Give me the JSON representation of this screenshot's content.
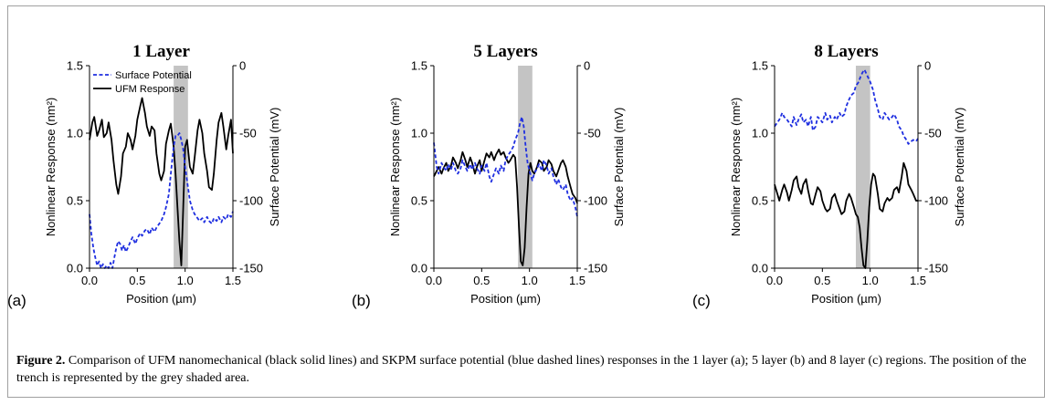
{
  "chart_data": [
    {
      "type": "line",
      "title": "1 Layer",
      "panel_label": "(a)",
      "xlabel": "Position (µm)",
      "ylabel_left": "Nonlinear Response (nm²)",
      "ylabel_right": "Surface Potential (mV)",
      "xlim": [
        0,
        1.5
      ],
      "ylim_left": [
        0,
        1.5
      ],
      "ylim_right": [
        -150,
        0
      ],
      "x_ticks": [
        "0.0",
        "0.5",
        "1.0",
        "1.5"
      ],
      "y_left_ticks": [
        "0.0",
        "0.5",
        "1.0",
        "1.5"
      ],
      "y_right_ticks": [
        "0",
        "-50",
        "-100",
        "-150"
      ],
      "shaded_region": [
        0.88,
        1.03
      ],
      "legend": [
        "Surface Potential",
        "UFM Response"
      ],
      "series": [
        {
          "name": "UFM Response",
          "axis": "left",
          "color": "#000000",
          "dash": "solid",
          "x": [
            0.0,
            0.03,
            0.05,
            0.08,
            0.1,
            0.13,
            0.15,
            0.18,
            0.2,
            0.23,
            0.25,
            0.28,
            0.3,
            0.33,
            0.35,
            0.38,
            0.4,
            0.43,
            0.45,
            0.48,
            0.5,
            0.53,
            0.55,
            0.58,
            0.6,
            0.63,
            0.65,
            0.68,
            0.7,
            0.73,
            0.75,
            0.78,
            0.8,
            0.83,
            0.85,
            0.88,
            0.9,
            0.92,
            0.94,
            0.96,
            0.98,
            1.0,
            1.02,
            1.05,
            1.08,
            1.1,
            1.13,
            1.15,
            1.18,
            1.2,
            1.23,
            1.25,
            1.28,
            1.3,
            1.33,
            1.35,
            1.38,
            1.4,
            1.43,
            1.45,
            1.48,
            1.5
          ],
          "y": [
            0.95,
            1.08,
            1.12,
            0.98,
            1.02,
            1.1,
            0.97,
            1.0,
            1.08,
            0.95,
            0.8,
            0.62,
            0.55,
            0.68,
            0.85,
            0.9,
            1.0,
            0.95,
            0.88,
            0.98,
            1.1,
            1.2,
            1.26,
            1.15,
            1.05,
            0.98,
            1.05,
            1.02,
            0.85,
            0.7,
            0.65,
            0.72,
            0.92,
            1.02,
            1.07,
            0.9,
            0.7,
            0.45,
            0.2,
            0.02,
            0.45,
            0.9,
            0.95,
            0.75,
            0.7,
            0.82,
            1.02,
            1.1,
            1.0,
            0.85,
            0.72,
            0.6,
            0.58,
            0.7,
            0.95,
            1.08,
            1.15,
            1.05,
            0.88,
            0.98,
            1.1,
            0.85
          ]
        },
        {
          "name": "Surface Potential",
          "axis": "right",
          "color": "#1f2fe0",
          "dash": "dashed",
          "x": [
            0.0,
            0.02,
            0.04,
            0.06,
            0.08,
            0.1,
            0.12,
            0.14,
            0.16,
            0.18,
            0.2,
            0.22,
            0.24,
            0.26,
            0.28,
            0.3,
            0.32,
            0.34,
            0.36,
            0.38,
            0.4,
            0.43,
            0.45,
            0.48,
            0.5,
            0.53,
            0.55,
            0.58,
            0.6,
            0.63,
            0.65,
            0.68,
            0.7,
            0.73,
            0.75,
            0.78,
            0.8,
            0.83,
            0.85,
            0.88,
            0.9,
            0.92,
            0.94,
            0.96,
            0.98,
            1.0,
            1.03,
            1.05,
            1.08,
            1.1,
            1.13,
            1.15,
            1.18,
            1.2,
            1.23,
            1.25,
            1.28,
            1.3,
            1.33,
            1.35,
            1.38,
            1.4,
            1.43,
            1.45,
            1.48,
            1.5
          ],
          "y": [
            -110,
            -125,
            -135,
            -142,
            -148,
            -145,
            -150,
            -147,
            -150,
            -148,
            -152,
            -146,
            -150,
            -142,
            -135,
            -130,
            -132,
            -137,
            -133,
            -138,
            -135,
            -130,
            -127,
            -132,
            -128,
            -124,
            -126,
            -122,
            -121,
            -125,
            -120,
            -123,
            -120,
            -117,
            -115,
            -110,
            -105,
            -95,
            -80,
            -60,
            -52,
            -52,
            -50,
            -55,
            -62,
            -75,
            -90,
            -100,
            -107,
            -110,
            -113,
            -115,
            -113,
            -116,
            -112,
            -115,
            -117,
            -113,
            -115,
            -112,
            -116,
            -112,
            -114,
            -110,
            -112,
            -108
          ]
        }
      ]
    },
    {
      "type": "line",
      "title": "5 Layers",
      "panel_label": "(b)",
      "xlabel": "Position (µm)",
      "ylabel_left": "Nonlinear Response (nm²)",
      "ylabel_right": "Surface Potential (mV)",
      "xlim": [
        0,
        1.5
      ],
      "ylim_left": [
        0,
        1.5
      ],
      "ylim_right": [
        -150,
        0
      ],
      "x_ticks": [
        "0.0",
        "0.5",
        "1.0",
        "1.5"
      ],
      "y_left_ticks": [
        "0.0",
        "0.5",
        "1.0",
        "1.5"
      ],
      "y_right_ticks": [
        "0",
        "-50",
        "-100",
        "-150"
      ],
      "shaded_region": [
        0.88,
        1.03
      ],
      "series": [
        {
          "name": "UFM Response",
          "axis": "left",
          "color": "#000000",
          "dash": "solid",
          "x": [
            0.0,
            0.03,
            0.05,
            0.08,
            0.1,
            0.13,
            0.15,
            0.18,
            0.2,
            0.23,
            0.25,
            0.28,
            0.3,
            0.33,
            0.35,
            0.38,
            0.4,
            0.43,
            0.45,
            0.48,
            0.5,
            0.53,
            0.55,
            0.58,
            0.6,
            0.63,
            0.65,
            0.68,
            0.7,
            0.73,
            0.75,
            0.78,
            0.8,
            0.83,
            0.85,
            0.87,
            0.89,
            0.91,
            0.93,
            0.95,
            0.97,
            0.99,
            1.01,
            1.03,
            1.05,
            1.08,
            1.1,
            1.13,
            1.15,
            1.18,
            1.2,
            1.23,
            1.25,
            1.28,
            1.3,
            1.33,
            1.35,
            1.38,
            1.4,
            1.43,
            1.45,
            1.48,
            1.5
          ],
          "y": [
            0.68,
            0.72,
            0.75,
            0.7,
            0.74,
            0.78,
            0.72,
            0.76,
            0.82,
            0.78,
            0.74,
            0.8,
            0.86,
            0.8,
            0.75,
            0.82,
            0.78,
            0.7,
            0.75,
            0.8,
            0.72,
            0.8,
            0.85,
            0.82,
            0.86,
            0.8,
            0.84,
            0.88,
            0.84,
            0.86,
            0.82,
            0.78,
            0.8,
            0.84,
            0.82,
            0.6,
            0.3,
            0.05,
            0.02,
            0.15,
            0.45,
            0.7,
            0.78,
            0.72,
            0.7,
            0.75,
            0.8,
            0.78,
            0.72,
            0.75,
            0.8,
            0.77,
            0.72,
            0.68,
            0.72,
            0.78,
            0.8,
            0.75,
            0.68,
            0.6,
            0.55,
            0.52,
            0.48
          ]
        },
        {
          "name": "Surface Potential",
          "axis": "right",
          "color": "#1f2fe0",
          "dash": "dashed",
          "x": [
            0.0,
            0.03,
            0.05,
            0.08,
            0.1,
            0.13,
            0.15,
            0.18,
            0.2,
            0.23,
            0.25,
            0.28,
            0.3,
            0.33,
            0.35,
            0.38,
            0.4,
            0.43,
            0.45,
            0.48,
            0.5,
            0.53,
            0.55,
            0.58,
            0.6,
            0.63,
            0.65,
            0.68,
            0.7,
            0.73,
            0.75,
            0.78,
            0.8,
            0.83,
            0.85,
            0.88,
            0.9,
            0.92,
            0.94,
            0.96,
            0.98,
            1.0,
            1.03,
            1.05,
            1.08,
            1.1,
            1.13,
            1.15,
            1.18,
            1.2,
            1.23,
            1.25,
            1.28,
            1.3,
            1.33,
            1.35,
            1.38,
            1.4,
            1.43,
            1.45,
            1.48,
            1.5
          ],
          "y": [
            -57,
            -75,
            -80,
            -72,
            -75,
            -78,
            -73,
            -77,
            -72,
            -78,
            -80,
            -76,
            -70,
            -75,
            -78,
            -73,
            -77,
            -72,
            -76,
            -80,
            -74,
            -78,
            -72,
            -82,
            -86,
            -80,
            -76,
            -80,
            -74,
            -78,
            -70,
            -66,
            -64,
            -60,
            -55,
            -50,
            -43,
            -38,
            -45,
            -60,
            -72,
            -78,
            -85,
            -80,
            -76,
            -73,
            -78,
            -70,
            -74,
            -80,
            -76,
            -82,
            -88,
            -84,
            -90,
            -92,
            -88,
            -95,
            -100,
            -98,
            -105,
            -112
          ]
        }
      ]
    },
    {
      "type": "line",
      "title": "8 Layers",
      "panel_label": "(c)",
      "xlabel": "Position (µm)",
      "ylabel_left": "Nonlinear Response (nm²)",
      "ylabel_right": "Surface Potential (mV)",
      "xlim": [
        0,
        1.5
      ],
      "ylim_left": [
        0,
        1.5
      ],
      "ylim_right": [
        -150,
        0
      ],
      "x_ticks": [
        "0.0",
        "0.5",
        "1.0",
        "1.5"
      ],
      "y_left_ticks": [
        "0.0",
        "0.5",
        "1.0",
        "1.5"
      ],
      "y_right_ticks": [
        "0",
        "-50",
        "-100",
        "-150"
      ],
      "shaded_region": [
        0.85,
        1.0
      ],
      "series": [
        {
          "name": "UFM Response",
          "axis": "left",
          "color": "#000000",
          "dash": "solid",
          "x": [
            0.0,
            0.03,
            0.05,
            0.08,
            0.1,
            0.13,
            0.15,
            0.18,
            0.2,
            0.23,
            0.25,
            0.28,
            0.3,
            0.33,
            0.35,
            0.38,
            0.4,
            0.43,
            0.45,
            0.48,
            0.5,
            0.53,
            0.55,
            0.58,
            0.6,
            0.63,
            0.65,
            0.68,
            0.7,
            0.73,
            0.75,
            0.78,
            0.8,
            0.83,
            0.85,
            0.87,
            0.89,
            0.91,
            0.93,
            0.95,
            0.97,
            0.99,
            1.01,
            1.03,
            1.05,
            1.08,
            1.1,
            1.13,
            1.15,
            1.18,
            1.2,
            1.23,
            1.25,
            1.28,
            1.3,
            1.33,
            1.35,
            1.38,
            1.4,
            1.43,
            1.45,
            1.48,
            1.5
          ],
          "y": [
            0.62,
            0.55,
            0.5,
            0.58,
            0.62,
            0.56,
            0.5,
            0.58,
            0.65,
            0.68,
            0.6,
            0.55,
            0.62,
            0.66,
            0.58,
            0.48,
            0.47,
            0.55,
            0.6,
            0.57,
            0.5,
            0.44,
            0.42,
            0.44,
            0.52,
            0.55,
            0.5,
            0.44,
            0.4,
            0.42,
            0.5,
            0.55,
            0.52,
            0.45,
            0.4,
            0.38,
            0.3,
            0.15,
            0.02,
            0.0,
            0.2,
            0.45,
            0.62,
            0.7,
            0.68,
            0.55,
            0.44,
            0.42,
            0.48,
            0.52,
            0.5,
            0.52,
            0.58,
            0.6,
            0.56,
            0.68,
            0.78,
            0.72,
            0.62,
            0.58,
            0.55,
            0.5,
            0.5
          ]
        },
        {
          "name": "Surface Potential",
          "axis": "right",
          "color": "#1f2fe0",
          "dash": "dashed",
          "x": [
            0.0,
            0.03,
            0.05,
            0.08,
            0.1,
            0.13,
            0.15,
            0.18,
            0.2,
            0.23,
            0.25,
            0.28,
            0.3,
            0.33,
            0.35,
            0.38,
            0.4,
            0.43,
            0.45,
            0.48,
            0.5,
            0.53,
            0.55,
            0.58,
            0.6,
            0.63,
            0.65,
            0.68,
            0.7,
            0.73,
            0.75,
            0.78,
            0.8,
            0.83,
            0.85,
            0.88,
            0.9,
            0.92,
            0.94,
            0.96,
            0.98,
            1.0,
            1.03,
            1.05,
            1.08,
            1.1,
            1.13,
            1.15,
            1.18,
            1.2,
            1.23,
            1.25,
            1.28,
            1.3,
            1.33,
            1.35,
            1.38,
            1.4,
            1.43,
            1.45,
            1.48,
            1.5
          ],
          "y": [
            -45,
            -42,
            -40,
            -35,
            -38,
            -40,
            -42,
            -45,
            -38,
            -44,
            -40,
            -36,
            -42,
            -40,
            -45,
            -38,
            -48,
            -45,
            -38,
            -40,
            -42,
            -35,
            -40,
            -37,
            -42,
            -38,
            -40,
            -35,
            -38,
            -36,
            -30,
            -25,
            -22,
            -20,
            -15,
            -12,
            -8,
            -5,
            -3,
            -6,
            -9,
            -12,
            -18,
            -25,
            -32,
            -38,
            -40,
            -35,
            -38,
            -40,
            -38,
            -36,
            -40,
            -45,
            -48,
            -52,
            -55,
            -58,
            -56,
            -55,
            -56,
            -54
          ]
        }
      ]
    }
  ],
  "caption": {
    "label": "Figure 2.",
    "text": " Comparison of UFM nanomechanical (black solid lines) and SKPM surface potential (blue dashed lines) responses in the 1 layer (a); 5 layer (b) and 8 layer (c) regions. The position of the trench is represented by the grey shaded area."
  }
}
